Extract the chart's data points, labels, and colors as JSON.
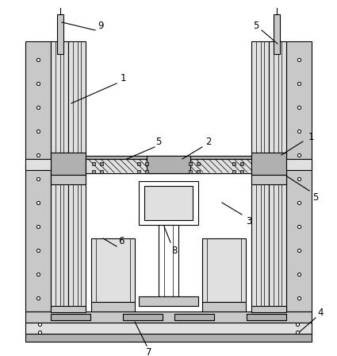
{
  "line_color": "#000000",
  "bg_color": "#ffffff",
  "gray1": "#e0e0e0",
  "gray2": "#c8c8c8",
  "gray3": "#b0b0b0",
  "gray4": "#909090",
  "gray5": "#d4d4d4",
  "fig_width": 4.25,
  "fig_height": 4.48,
  "dpi": 100
}
